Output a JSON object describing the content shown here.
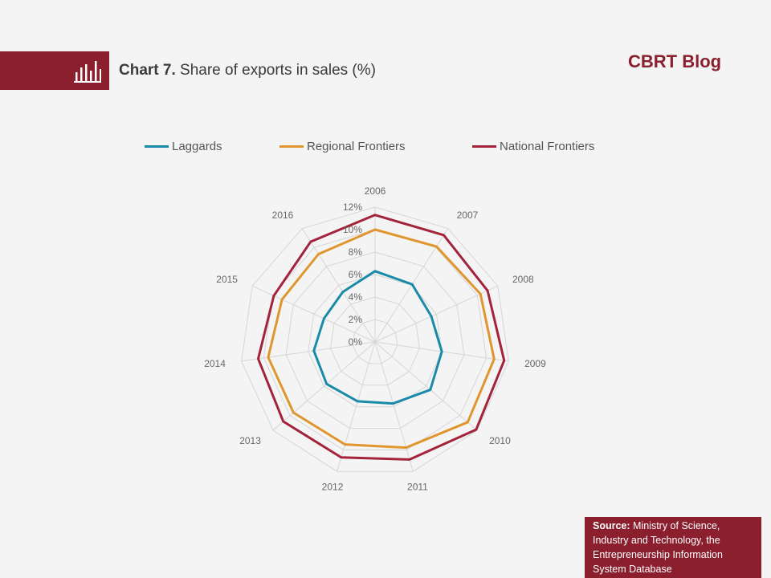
{
  "header": {
    "chart_number": "Chart 7.",
    "chart_title": "Share of exports in sales (%)",
    "brand": "CBRT Blog"
  },
  "source": {
    "label": "Source:",
    "text": "Ministry of Science, Industry and Technology, the Entrepreneurship Information System Database"
  },
  "colors": {
    "brand": "#8b1f2e",
    "laggards": "#1a8aa8",
    "regional": "#e0962e",
    "national": "#a3243a"
  },
  "chart_data": {
    "type": "radar",
    "categories": [
      "2006",
      "2007",
      "2008",
      "2009",
      "2010",
      "2011",
      "2012",
      "2013",
      "2014",
      "2015",
      "2016"
    ],
    "axis_ticks": [
      "0%",
      "2%",
      "4%",
      "6%",
      "8%",
      "10%",
      "12%"
    ],
    "rlim": [
      0,
      12
    ],
    "grid": true,
    "legend_position": "top",
    "series": [
      {
        "name": "Laggards",
        "color": "#1a8aa8",
        "values": [
          6.3,
          6.1,
          5.5,
          6.0,
          6.5,
          5.7,
          5.5,
          5.7,
          5.5,
          5.0,
          5.3
        ]
      },
      {
        "name": "Regional Frontiers",
        "color": "#e0962e",
        "values": [
          10.0,
          10.1,
          10.3,
          10.7,
          10.9,
          9.8,
          9.5,
          9.6,
          9.6,
          9.1,
          9.3
        ]
      },
      {
        "name": "National Frontiers",
        "color": "#a3243a",
        "values": [
          11.3,
          11.3,
          11.0,
          11.6,
          11.9,
          10.9,
          10.7,
          10.8,
          10.5,
          9.9,
          10.6
        ]
      }
    ]
  }
}
